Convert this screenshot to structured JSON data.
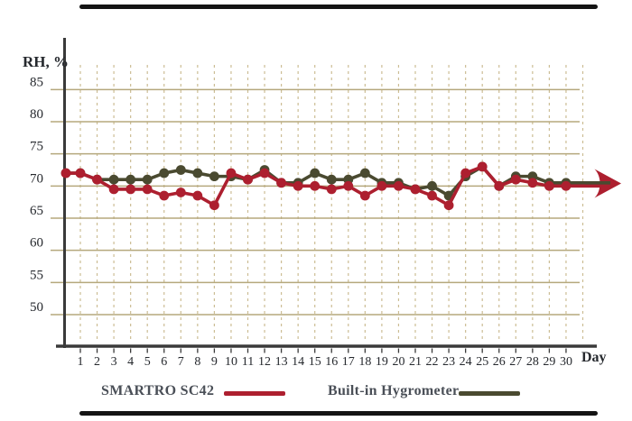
{
  "style": {
    "background": "#ffffff",
    "axis_color": "#3a3a3a",
    "grid_h_color": "#b5a87d",
    "grid_v_color": "#ccbd94",
    "label_color": "#26292e",
    "legend_text_color": "#4a4f57",
    "border_bar_color": "#141414",
    "smartro_color": "#ad1f2f",
    "hygrometer_color": "#4a4a30"
  },
  "chart_data": {
    "type": "line",
    "title": "",
    "ylabel": "RH, %",
    "xlabel": "Day",
    "days": [
      1,
      2,
      3,
      4,
      5,
      6,
      7,
      8,
      9,
      10,
      11,
      12,
      13,
      14,
      15,
      16,
      17,
      18,
      19,
      20,
      21,
      22,
      23,
      24,
      25,
      26,
      27,
      28,
      29,
      30
    ],
    "yticks": [
      85,
      80,
      75,
      70,
      65,
      60,
      55,
      50
    ],
    "ylim": [
      45,
      89
    ],
    "grid": {
      "horizontal": "solid",
      "vertical": "dashed"
    },
    "legend_position": "bottom",
    "series": [
      {
        "name": "SMARTRO SC42",
        "color": "#ad1f2f",
        "values": [
          72,
          71,
          69.5,
          69.5,
          69.5,
          68.5,
          69,
          68.5,
          67,
          72,
          71,
          72,
          70.5,
          70,
          70,
          69.5,
          70,
          68.5,
          70,
          70,
          69.5,
          68.5,
          67,
          72,
          73,
          70,
          71,
          70.5,
          70,
          70
        ]
      },
      {
        "name": "Built-in Hygrometer",
        "color": "#4a4a30",
        "values": [
          72,
          71,
          71,
          71,
          71,
          72,
          72.5,
          72,
          71.5,
          71.5,
          71,
          72.5,
          70.5,
          70.5,
          72,
          71,
          71,
          72,
          70.5,
          70.5,
          69.5,
          70,
          68.5,
          71.5,
          73,
          70,
          71.5,
          71.5,
          70.5,
          70.5
        ]
      }
    ],
    "annotations": {
      "arrow_end": "right-pointing arrow after day 30",
      "arrow_color": "#ad1f2f"
    }
  }
}
